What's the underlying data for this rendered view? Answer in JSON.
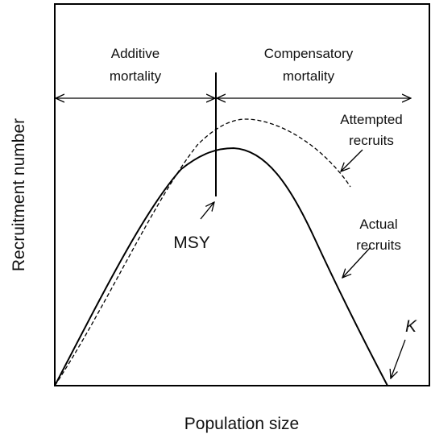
{
  "diagram": {
    "regions": {
      "additive": [
        "Additive",
        "mortality"
      ],
      "compensatory": [
        "Compensatory",
        "mortality"
      ]
    },
    "curves": {
      "attempted": [
        "Attempted",
        "recruits"
      ],
      "actual": [
        "Actual",
        "recruits"
      ]
    },
    "points": {
      "msy": "MSY",
      "k": "K"
    },
    "axes": {
      "x_label": "Population size",
      "y_label": "Recruitment number"
    }
  }
}
